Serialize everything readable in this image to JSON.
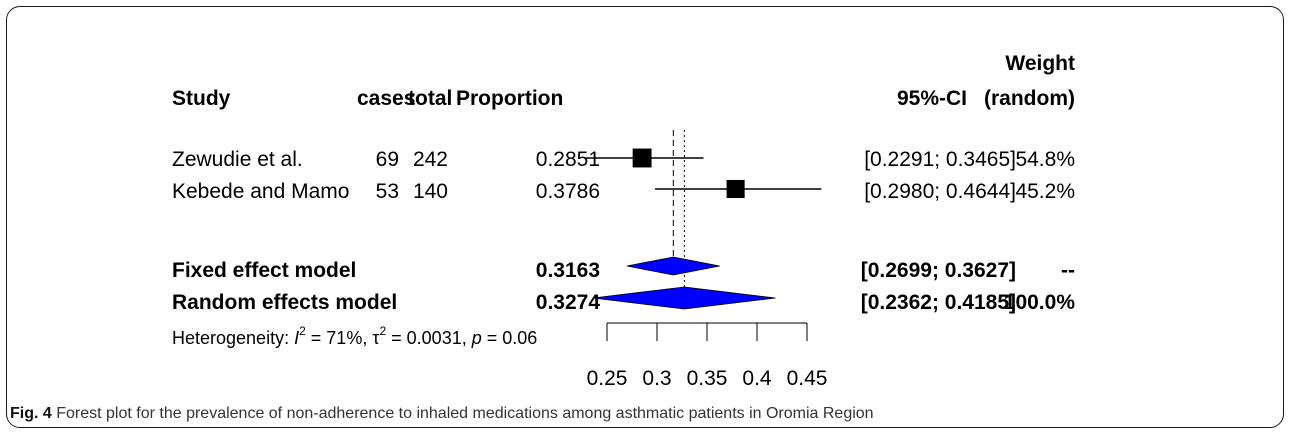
{
  "chart_data": {
    "type": "forest",
    "headers": {
      "study": "Study",
      "cases": "cases",
      "total": "total",
      "proportion": "Proportion",
      "ci": "95%-CI",
      "weight_top": "Weight",
      "weight_bottom": "(random)"
    },
    "studies": [
      {
        "name": "Zewudie et al.",
        "cases": "69",
        "total": "242",
        "proportion": 0.2851,
        "proportion_text": "0.2851",
        "lower": 0.2291,
        "upper": 0.3465,
        "ci_text": "[0.2291; 0.3465]",
        "weight": 54.8,
        "weight_text": "54.8%"
      },
      {
        "name": "Kebede and Mamo",
        "cases": "53",
        "total": "140",
        "proportion": 0.3786,
        "proportion_text": "0.3786",
        "lower": 0.298,
        "upper": 0.4644,
        "ci_text": "[0.2980; 0.4644]",
        "weight": 45.2,
        "weight_text": "45.2%"
      }
    ],
    "models": [
      {
        "name": "Fixed effect model",
        "estimate": 0.3163,
        "estimate_text": "0.3163",
        "lower": 0.2699,
        "upper": 0.3627,
        "ci_text": "[0.2699; 0.3627]",
        "weight_text": "--"
      },
      {
        "name": "Random effects model",
        "estimate": 0.3274,
        "estimate_text": "0.3274",
        "lower": 0.2362,
        "upper": 0.4185,
        "ci_text": "[0.2362; 0.4185]",
        "weight_text": "100.0%"
      }
    ],
    "heterogeneity": {
      "label": "Heterogeneity: ",
      "i2_symbol": "I",
      "i2_value": " = 71%, ",
      "tau2_symbol": "τ",
      "tau2_value": " = 0.0031, ",
      "p_symbol": "p",
      "p_value": " = 0.06",
      "superscript": "2"
    },
    "x_axis": {
      "ticks": [
        0.25,
        0.3,
        0.35,
        0.4,
        0.45
      ],
      "tick_labels": [
        "0.25",
        "0.3",
        "0.35",
        "0.4",
        "0.45"
      ],
      "range": [
        0.2291,
        0.4644
      ]
    },
    "colors": {
      "diamond": "#0000ff",
      "square": "#000000",
      "line": "#000000"
    }
  },
  "caption": {
    "prefix": "Fig. 4",
    "text": " Forest plot for the prevalence of non-adherence to inhaled medications among asthmatic patients in Oromia Region"
  }
}
